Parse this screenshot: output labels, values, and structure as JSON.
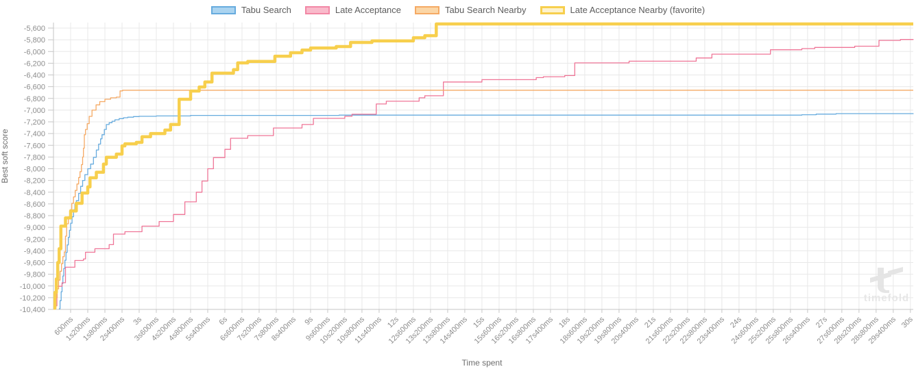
{
  "legend": {
    "items": [
      {
        "label": "Tabu Search",
        "fill": "#abd4f0",
        "border": "#66abde",
        "border_width": 2
      },
      {
        "label": "Late Acceptance",
        "fill": "#f9bacb",
        "border": "#f287a5",
        "border_width": 2
      },
      {
        "label": "Tabu Search Nearby",
        "fill": "#fbd6a6",
        "border": "#f5a963",
        "border_width": 2
      },
      {
        "label": "Late Acceptance Nearby (favorite)",
        "fill": "#fdf2cd",
        "border": "#f7cf4d",
        "border_width": 3
      }
    ]
  },
  "watermark": {
    "text": "timefold"
  },
  "chart_data": {
    "type": "line",
    "interpolation": "step-after",
    "title": "",
    "xlabel": "Time spent",
    "ylabel": "Best soft score",
    "x_unit": "seconds",
    "xlim": [
      0,
      30.1
    ],
    "ylim": [
      -10400,
      -5600
    ],
    "grid": true,
    "legend_position": "top-center",
    "colors": {
      "grid": "#e8e8e8",
      "axis": "#c6c6c6",
      "tick_text": "#8d8d8d"
    },
    "y_ticks": [
      {
        "v": -5600,
        "label": "-5,600"
      },
      {
        "v": -5800,
        "label": "-5,800"
      },
      {
        "v": -6000,
        "label": "-6,000"
      },
      {
        "v": -6200,
        "label": "-6,200"
      },
      {
        "v": -6400,
        "label": "-6,400"
      },
      {
        "v": -6600,
        "label": "-6,600"
      },
      {
        "v": -6800,
        "label": "-6,800"
      },
      {
        "v": -7000,
        "label": "-7,000"
      },
      {
        "v": -7200,
        "label": "-7,200"
      },
      {
        "v": -7400,
        "label": "-7,400"
      },
      {
        "v": -7600,
        "label": "-7,600"
      },
      {
        "v": -7800,
        "label": "-7,800"
      },
      {
        "v": -8000,
        "label": "-8,000"
      },
      {
        "v": -8200,
        "label": "-8,200"
      },
      {
        "v": -8400,
        "label": "-8,400"
      },
      {
        "v": -8600,
        "label": "-8,600"
      },
      {
        "v": -8800,
        "label": "-8,800"
      },
      {
        "v": -9000,
        "label": "-9,000"
      },
      {
        "v": -9200,
        "label": "-9,200"
      },
      {
        "v": -9400,
        "label": "-9,400"
      },
      {
        "v": -9600,
        "label": "-9,600"
      },
      {
        "v": -9800,
        "label": "-9,800"
      },
      {
        "v": -10000,
        "label": "-10,000"
      },
      {
        "v": -10200,
        "label": "-10,200"
      },
      {
        "v": -10400,
        "label": "-10,400"
      }
    ],
    "x_ticks": [
      {
        "t": 0.6,
        "label": "600ms"
      },
      {
        "t": 1.2,
        "label": "1s200ms"
      },
      {
        "t": 1.8,
        "label": "1s800ms"
      },
      {
        "t": 2.4,
        "label": "2s400ms"
      },
      {
        "t": 3,
        "label": "3s"
      },
      {
        "t": 3.6,
        "label": "3s600ms"
      },
      {
        "t": 4.2,
        "label": "4s200ms"
      },
      {
        "t": 4.8,
        "label": "4s800ms"
      },
      {
        "t": 5.4,
        "label": "5s400ms"
      },
      {
        "t": 6,
        "label": "6s"
      },
      {
        "t": 6.6,
        "label": "6s600ms"
      },
      {
        "t": 7.2,
        "label": "7s200ms"
      },
      {
        "t": 7.8,
        "label": "7s800ms"
      },
      {
        "t": 8.4,
        "label": "8s400ms"
      },
      {
        "t": 9,
        "label": "9s"
      },
      {
        "t": 9.6,
        "label": "9s600ms"
      },
      {
        "t": 10.2,
        "label": "10s200ms"
      },
      {
        "t": 10.8,
        "label": "10s800ms"
      },
      {
        "t": 11.4,
        "label": "11s400ms"
      },
      {
        "t": 12,
        "label": "12s"
      },
      {
        "t": 12.6,
        "label": "12s600ms"
      },
      {
        "t": 13.2,
        "label": "13s200ms"
      },
      {
        "t": 13.8,
        "label": "13s800ms"
      },
      {
        "t": 14.4,
        "label": "14s400ms"
      },
      {
        "t": 15,
        "label": "15s"
      },
      {
        "t": 15.6,
        "label": "15s600ms"
      },
      {
        "t": 16.2,
        "label": "16s200ms"
      },
      {
        "t": 16.8,
        "label": "16s800ms"
      },
      {
        "t": 17.4,
        "label": "17s400ms"
      },
      {
        "t": 18,
        "label": "18s"
      },
      {
        "t": 18.6,
        "label": "18s600ms"
      },
      {
        "t": 19.2,
        "label": "19s200ms"
      },
      {
        "t": 19.8,
        "label": "19s800ms"
      },
      {
        "t": 20.4,
        "label": "20s400ms"
      },
      {
        "t": 21,
        "label": "21s"
      },
      {
        "t": 21.6,
        "label": "21s600ms"
      },
      {
        "t": 22.2,
        "label": "22s200ms"
      },
      {
        "t": 22.8,
        "label": "22s800ms"
      },
      {
        "t": 23.4,
        "label": "23s400ms"
      },
      {
        "t": 24,
        "label": "24s"
      },
      {
        "t": 24.6,
        "label": "24s600ms"
      },
      {
        "t": 25.2,
        "label": "25s200ms"
      },
      {
        "t": 25.8,
        "label": "25s800ms"
      },
      {
        "t": 26.4,
        "label": "26s400ms"
      },
      {
        "t": 27,
        "label": "27s"
      },
      {
        "t": 27.6,
        "label": "27s600ms"
      },
      {
        "t": 28.2,
        "label": "28s200ms"
      },
      {
        "t": 28.8,
        "label": "28s800ms"
      },
      {
        "t": 29.4,
        "label": "29s400ms"
      },
      {
        "t": 30,
        "label": "30s"
      }
    ],
    "series": [
      {
        "name": "Tabu Search",
        "color": "#66abde",
        "width": 1.3,
        "points": [
          [
            0.19,
            -10390
          ],
          [
            0.23,
            -10250
          ],
          [
            0.27,
            -10100
          ],
          [
            0.3,
            -9960
          ],
          [
            0.33,
            -9830
          ],
          [
            0.36,
            -9700
          ],
          [
            0.4,
            -9560
          ],
          [
            0.44,
            -9430
          ],
          [
            0.48,
            -9300
          ],
          [
            0.52,
            -9170
          ],
          [
            0.56,
            -9050
          ],
          [
            0.6,
            -8930
          ],
          [
            0.65,
            -8820
          ],
          [
            0.7,
            -8700
          ],
          [
            0.75,
            -8600
          ],
          [
            0.8,
            -8545
          ],
          [
            0.88,
            -8420
          ],
          [
            0.95,
            -8300
          ],
          [
            1.02,
            -8200
          ],
          [
            1.1,
            -8100
          ],
          [
            1.2,
            -8000
          ],
          [
            1.3,
            -7920
          ],
          [
            1.4,
            -7805
          ],
          [
            1.5,
            -7680
          ],
          [
            1.58,
            -7580
          ],
          [
            1.65,
            -7490
          ],
          [
            1.7,
            -7420
          ],
          [
            1.78,
            -7330
          ],
          [
            1.85,
            -7245
          ],
          [
            1.95,
            -7215
          ],
          [
            2.05,
            -7190
          ],
          [
            2.15,
            -7165
          ],
          [
            2.3,
            -7145
          ],
          [
            2.45,
            -7130
          ],
          [
            2.6,
            -7120
          ],
          [
            2.8,
            -7110
          ],
          [
            3.0,
            -7105
          ],
          [
            3.6,
            -7100
          ],
          [
            4.8,
            -7090
          ],
          [
            10.0,
            -7085
          ],
          [
            26.2,
            -7078
          ],
          [
            26.7,
            -7068
          ],
          [
            27.4,
            -7060
          ],
          [
            30.1,
            -7055
          ]
        ]
      },
      {
        "name": "Late Acceptance",
        "color": "#ef7597",
        "width": 1.3,
        "points": [
          [
            0.0,
            -10380
          ],
          [
            0.08,
            -10340
          ],
          [
            0.12,
            -10005
          ],
          [
            0.3,
            -9945
          ],
          [
            0.42,
            -9680
          ],
          [
            0.75,
            -9565
          ],
          [
            1.05,
            -9540
          ],
          [
            1.12,
            -9425
          ],
          [
            1.45,
            -9365
          ],
          [
            1.95,
            -9295
          ],
          [
            2.1,
            -9115
          ],
          [
            2.5,
            -9075
          ],
          [
            3.1,
            -8980
          ],
          [
            3.7,
            -8900
          ],
          [
            4.2,
            -8780
          ],
          [
            4.6,
            -8565
          ],
          [
            5.0,
            -8400
          ],
          [
            5.2,
            -8210
          ],
          [
            5.4,
            -8000
          ],
          [
            5.6,
            -7810
          ],
          [
            6.0,
            -7670
          ],
          [
            6.2,
            -7480
          ],
          [
            6.8,
            -7435
          ],
          [
            7.7,
            -7305
          ],
          [
            8.7,
            -7245
          ],
          [
            9.1,
            -7140
          ],
          [
            10.2,
            -7105
          ],
          [
            10.45,
            -7070
          ],
          [
            11.3,
            -6895
          ],
          [
            11.65,
            -6848
          ],
          [
            12.8,
            -6790
          ],
          [
            13.0,
            -6755
          ],
          [
            13.65,
            -6520
          ],
          [
            15.0,
            -6480
          ],
          [
            16.9,
            -6445
          ],
          [
            17.15,
            -6430
          ],
          [
            17.9,
            -6410
          ],
          [
            18.25,
            -6195
          ],
          [
            20.15,
            -6165
          ],
          [
            22.5,
            -6110
          ],
          [
            23.05,
            -6045
          ],
          [
            25.1,
            -5970
          ],
          [
            26.2,
            -5950
          ],
          [
            26.65,
            -5930
          ],
          [
            28.05,
            -5910
          ],
          [
            28.9,
            -5810
          ],
          [
            29.65,
            -5795
          ],
          [
            30.1,
            -5792
          ]
        ]
      },
      {
        "name": "Tabu Search Nearby",
        "color": "#f5a963",
        "width": 1.3,
        "points": [
          [
            0.0,
            -10390
          ],
          [
            0.08,
            -10200
          ],
          [
            0.13,
            -10050
          ],
          [
            0.18,
            -9900
          ],
          [
            0.23,
            -9750
          ],
          [
            0.28,
            -9620
          ],
          [
            0.33,
            -9500
          ],
          [
            0.38,
            -9420
          ],
          [
            0.42,
            -9150
          ],
          [
            0.46,
            -8940
          ],
          [
            0.52,
            -8820
          ],
          [
            0.58,
            -8700
          ],
          [
            0.64,
            -8590
          ],
          [
            0.7,
            -8480
          ],
          [
            0.76,
            -8370
          ],
          [
            0.82,
            -8260
          ],
          [
            0.88,
            -8150
          ],
          [
            0.93,
            -8050
          ],
          [
            0.98,
            -7930
          ],
          [
            1.02,
            -7800
          ],
          [
            1.05,
            -7650
          ],
          [
            1.08,
            -7420
          ],
          [
            1.12,
            -7330
          ],
          [
            1.18,
            -7230
          ],
          [
            1.25,
            -7107
          ],
          [
            1.35,
            -7000
          ],
          [
            1.49,
            -6910
          ],
          [
            1.62,
            -6855
          ],
          [
            1.8,
            -6815
          ],
          [
            2.0,
            -6790
          ],
          [
            2.2,
            -6778
          ],
          [
            2.33,
            -6672
          ],
          [
            2.42,
            -6660
          ],
          [
            30.1,
            -6660
          ]
        ]
      },
      {
        "name": "Late Acceptance Nearby (favorite)",
        "color": "#f7cf4d",
        "width": 4.5,
        "points": [
          [
            0.0,
            -10380
          ],
          [
            0.05,
            -10110
          ],
          [
            0.1,
            -9880
          ],
          [
            0.15,
            -9600
          ],
          [
            0.2,
            -9365
          ],
          [
            0.26,
            -8980
          ],
          [
            0.42,
            -8840
          ],
          [
            0.6,
            -8720
          ],
          [
            0.8,
            -8590
          ],
          [
            1.0,
            -8415
          ],
          [
            1.2,
            -8310
          ],
          [
            1.28,
            -8155
          ],
          [
            1.5,
            -8060
          ],
          [
            1.75,
            -7920
          ],
          [
            1.85,
            -7805
          ],
          [
            2.2,
            -7750
          ],
          [
            2.4,
            -7610
          ],
          [
            2.5,
            -7575
          ],
          [
            2.9,
            -7550
          ],
          [
            3.1,
            -7455
          ],
          [
            3.4,
            -7400
          ],
          [
            3.9,
            -7340
          ],
          [
            4.1,
            -7245
          ],
          [
            4.4,
            -6815
          ],
          [
            4.8,
            -6675
          ],
          [
            5.1,
            -6605
          ],
          [
            5.3,
            -6520
          ],
          [
            5.55,
            -6370
          ],
          [
            6.3,
            -6310
          ],
          [
            6.45,
            -6195
          ],
          [
            6.8,
            -6170
          ],
          [
            7.75,
            -6080
          ],
          [
            8.3,
            -6020
          ],
          [
            8.7,
            -5975
          ],
          [
            9.0,
            -5940
          ],
          [
            9.9,
            -5915
          ],
          [
            10.4,
            -5845
          ],
          [
            11.15,
            -5820
          ],
          [
            12.6,
            -5765
          ],
          [
            13.0,
            -5730
          ],
          [
            13.4,
            -5530
          ],
          [
            30.1,
            -5530
          ]
        ]
      }
    ]
  }
}
